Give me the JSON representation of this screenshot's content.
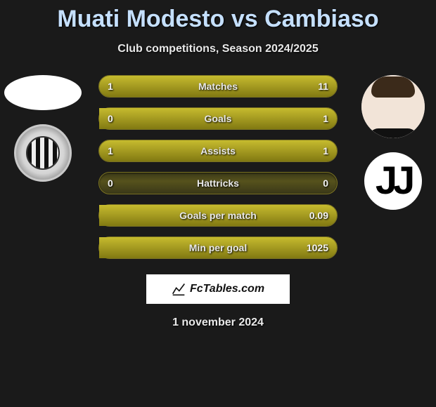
{
  "title": "Muati Modesto vs Cambiaso",
  "subtitle": "Club competitions, Season 2024/2025",
  "date": "1 november 2024",
  "watermark": "FcTables.com",
  "colors": {
    "background": "#1a1a1a",
    "title": "#c5e0ff",
    "bar_track": "#3a3818",
    "bar_fill": "#a49a21",
    "bar_border": "#7b7322",
    "text": "#f4f4f4"
  },
  "left": {
    "player": "Muati Modesto",
    "team": "Udinese",
    "team_icon": "udinese"
  },
  "right": {
    "player": "Cambiaso",
    "team": "Juventus",
    "team_icon": "juventus"
  },
  "rows": [
    {
      "label": "Matches",
      "left_val": "1",
      "right_val": "11",
      "left_pct": 8,
      "right_pct": 92
    },
    {
      "label": "Goals",
      "left_val": "0",
      "right_val": "1",
      "left_pct": 0,
      "right_pct": 100
    },
    {
      "label": "Assists",
      "left_val": "1",
      "right_val": "1",
      "left_pct": 50,
      "right_pct": 50
    },
    {
      "label": "Hattricks",
      "left_val": "0",
      "right_val": "0",
      "left_pct": 0,
      "right_pct": 0
    },
    {
      "label": "Goals per match",
      "left_val": "",
      "right_val": "0.09",
      "left_pct": 0,
      "right_pct": 100
    },
    {
      "label": "Min per goal",
      "left_val": "",
      "right_val": "1025",
      "left_pct": 0,
      "right_pct": 100
    }
  ]
}
